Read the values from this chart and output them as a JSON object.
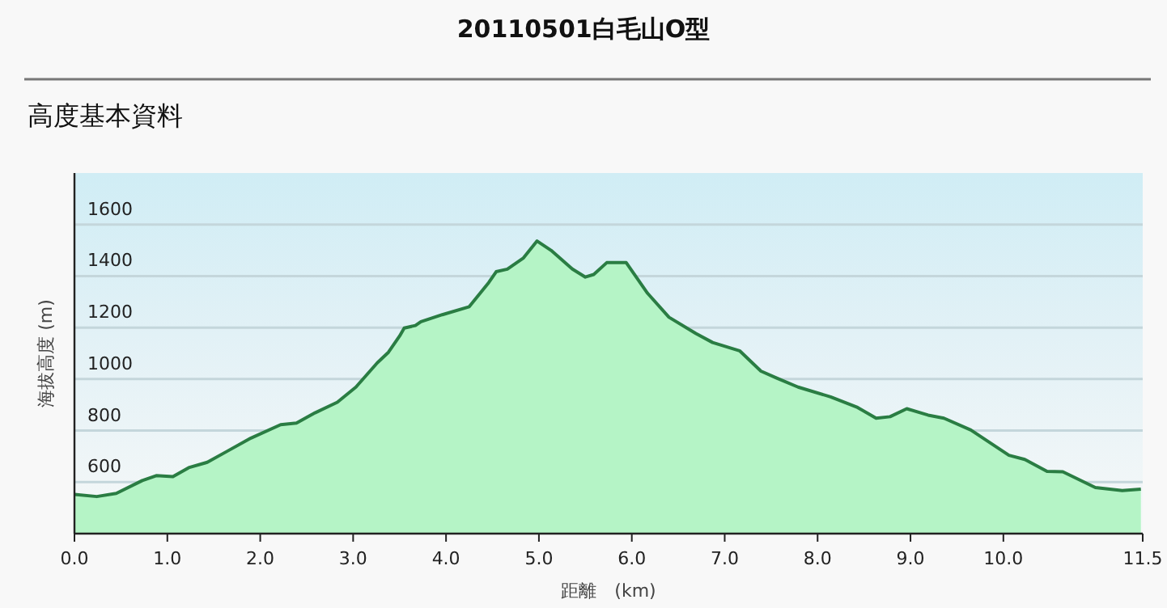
{
  "chart_data": {
    "type": "area",
    "title": "20110501白毛山O型",
    "subtitle": "高度基本資料",
    "xlabel": "距離　(km)",
    "ylabel": "海拔高度 (m)",
    "x": [
      0,
      0.24,
      0.45,
      0.73,
      0.88,
      1.06,
      1.23,
      1.43,
      1.64,
      1.9,
      2.22,
      2.39,
      2.59,
      2.83,
      3.03,
      3.26,
      3.38,
      3.5,
      3.55,
      3.67,
      3.73,
      3.96,
      4.25,
      4.46,
      4.54,
      4.66,
      4.83,
      4.98,
      5.13,
      5.36,
      5.5,
      5.59,
      5.73,
      5.94,
      6.17,
      6.4,
      6.69,
      6.87,
      7.16,
      7.39,
      7.56,
      7.79,
      8.14,
      8.43,
      8.63,
      8.78,
      8.96,
      9.19,
      9.36,
      9.65,
      10.06,
      10.23,
      10.47,
      10.64,
      10.99,
      11.28,
      11.48
    ],
    "series": [
      {
        "color": "#2a7d43",
        "values": [
          552,
          544,
          556,
          606,
          625,
          621,
          656,
          677,
          719,
          771,
          823,
          829,
          869,
          910,
          969,
          1063,
          1104,
          1167,
          1198,
          1208,
          1223,
          1250,
          1281,
          1375,
          1417,
          1427,
          1469,
          1536,
          1500,
          1427,
          1396,
          1406,
          1452,
          1452,
          1333,
          1240,
          1177,
          1142,
          1110,
          1031,
          1004,
          969,
          931,
          890,
          848,
          854,
          885,
          860,
          848,
          802,
          704,
          688,
          642,
          640,
          579,
          567,
          573
        ]
      }
    ],
    "xlim": [
      0,
      11.5
    ],
    "xticks": [
      {
        "value": 0,
        "label": "0.0"
      },
      {
        "value": 1,
        "label": "1.0"
      },
      {
        "value": 2,
        "label": "2.0"
      },
      {
        "value": 3,
        "label": "3.0"
      },
      {
        "value": 4,
        "label": "4.0"
      },
      {
        "value": 5,
        "label": "5.0"
      },
      {
        "value": 6,
        "label": "6.0"
      },
      {
        "value": 7,
        "label": "7.0"
      },
      {
        "value": 8,
        "label": "8.0"
      },
      {
        "value": 9,
        "label": "9.0"
      },
      {
        "value": 10,
        "label": "10.0"
      },
      {
        "value": 11.5,
        "label": "11.5"
      }
    ],
    "ylim": [
      400,
      1800
    ],
    "yticks": [
      600,
      800,
      1000,
      1200,
      1400,
      1600
    ],
    "grid": "y"
  }
}
